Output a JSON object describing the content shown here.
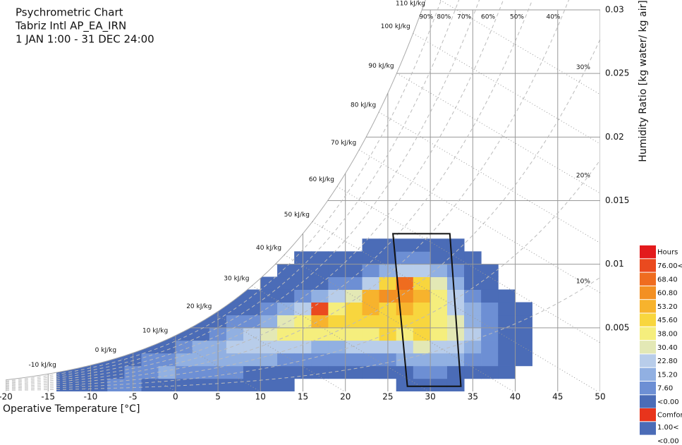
{
  "chart_data": {
    "type": "heatmap",
    "title": "Psychrometric Chart",
    "subtitle": [
      "Tabriz Intl AP_EA_IRN",
      "1 JAN 1:00 - 31 DEC 24:00"
    ],
    "x_label": "Operative Temperature [°C]",
    "y_label": "Humidity Ratio [kg water/ kg air]",
    "xlim": [
      -20,
      50
    ],
    "xticks": [
      -20,
      -15,
      -10,
      -5,
      0,
      5,
      10,
      15,
      20,
      25,
      30,
      35,
      40,
      45,
      50
    ],
    "ylim": [
      0,
      0.03
    ],
    "yticks": [
      0.005,
      0.01,
      0.015,
      0.02,
      0.025,
      0.03
    ],
    "grid": true,
    "relative_humidity_lines": [
      {
        "value": 90,
        "label": "90%"
      },
      {
        "value": 80,
        "label": "80%"
      },
      {
        "value": 70,
        "label": "70%"
      },
      {
        "value": 60,
        "label": "60%"
      },
      {
        "value": 50,
        "label": "50%"
      },
      {
        "value": 40,
        "label": "40%"
      },
      {
        "value": 30,
        "label": "30%"
      },
      {
        "value": 20,
        "label": "20%"
      },
      {
        "value": 10,
        "label": "10%"
      }
    ],
    "enthalpy_lines": [
      {
        "value": -10,
        "label": "-10 kJ/kg"
      },
      {
        "value": 0,
        "label": "0 kJ/kg"
      },
      {
        "value": 10,
        "label": "10 kJ/kg"
      },
      {
        "value": 20,
        "label": "20 kJ/kg"
      },
      {
        "value": 30,
        "label": "30 kJ/kg"
      },
      {
        "value": 40,
        "label": "40 kJ/kg"
      },
      {
        "value": 50,
        "label": "50 kJ/kg"
      },
      {
        "value": 60,
        "label": "60 kJ/kg"
      },
      {
        "value": 70,
        "label": "70 kJ/kg"
      },
      {
        "value": 80,
        "label": "80 kJ/kg"
      },
      {
        "value": 90,
        "label": "90 kJ/kg"
      },
      {
        "value": 100,
        "label": "100 kJ/kg"
      },
      {
        "value": 110,
        "label": "110 kJ/kg"
      }
    ],
    "temperature_bins": [
      -14,
      -12,
      -10,
      -8,
      -6,
      -4,
      -2,
      0,
      2,
      4,
      6,
      8,
      10,
      12,
      14,
      16,
      18,
      20,
      22,
      24,
      26,
      28,
      30,
      32,
      34,
      36,
      38,
      40,
      42
    ],
    "humidity_bins": [
      0,
      0.001,
      0.002,
      0.003,
      0.004,
      0.005,
      0.006,
      0.007,
      0.008,
      0.009,
      0.01,
      0.011,
      0.012
    ],
    "hours": [
      [
        3,
        1,
        null,
        null,
        null,
        null,
        null,
        null,
        null,
        null,
        null,
        null
      ],
      [
        5,
        2,
        null,
        null,
        null,
        null,
        null,
        null,
        null,
        null,
        null,
        null
      ],
      [
        6,
        4,
        1,
        null,
        null,
        null,
        null,
        null,
        null,
        null,
        null,
        null
      ],
      [
        8,
        6,
        2,
        null,
        null,
        null,
        null,
        null,
        null,
        null,
        null,
        null
      ],
      [
        8,
        10,
        4,
        1,
        null,
        null,
        null,
        null,
        null,
        null,
        null,
        null
      ],
      [
        6,
        14,
        8,
        2,
        null,
        null,
        null,
        null,
        null,
        null,
        null,
        null
      ],
      [
        4,
        16,
        14,
        5,
        1,
        null,
        null,
        null,
        null,
        null,
        null,
        null
      ],
      [
        3,
        15,
        20,
        10,
        3,
        1,
        null,
        null,
        null,
        null,
        null,
        null
      ],
      [
        2,
        12,
        22,
        16,
        6,
        2,
        null,
        null,
        null,
        null,
        null,
        null
      ],
      [
        2,
        10,
        22,
        22,
        12,
        4,
        1,
        null,
        null,
        null,
        null,
        null
      ],
      [
        2,
        8,
        20,
        28,
        20,
        8,
        2,
        1,
        null,
        null,
        null,
        null
      ],
      [
        2,
        6,
        18,
        30,
        30,
        14,
        5,
        1,
        null,
        null,
        null,
        null
      ],
      [
        1,
        6,
        16,
        30,
        36,
        22,
        10,
        3,
        1,
        null,
        null,
        null
      ],
      [
        1,
        5,
        14,
        26,
        38,
        34,
        16,
        6,
        2,
        1,
        null,
        null
      ],
      [
        null,
        4,
        12,
        24,
        40,
        44,
        26,
        12,
        4,
        2,
        1,
        null
      ],
      [
        null,
        3,
        10,
        22,
        38,
        54,
        80,
        18,
        6,
        3,
        1,
        null
      ],
      [
        null,
        3,
        10,
        22,
        40,
        46,
        44,
        24,
        8,
        3,
        1,
        null
      ],
      [
        null,
        3,
        10,
        24,
        42,
        48,
        46,
        34,
        12,
        4,
        2,
        null
      ],
      [
        null,
        4,
        12,
        26,
        44,
        50,
        56,
        60,
        30,
        10,
        4,
        2
      ],
      [
        null,
        4,
        14,
        28,
        46,
        52,
        50,
        66,
        48,
        18,
        6,
        2
      ],
      [
        2,
        6,
        16,
        30,
        44,
        50,
        54,
        62,
        70,
        30,
        10,
        3
      ],
      [
        3,
        8,
        18,
        32,
        46,
        50,
        52,
        58,
        50,
        28,
        10,
        3
      ],
      [
        3,
        8,
        18,
        30,
        42,
        44,
        42,
        40,
        32,
        18,
        6,
        2
      ],
      [
        2,
        6,
        16,
        26,
        34,
        34,
        30,
        26,
        16,
        8,
        3,
        1
      ],
      [
        null,
        4,
        12,
        20,
        24,
        22,
        18,
        12,
        6,
        3,
        1,
        null
      ],
      [
        null,
        2,
        8,
        12,
        14,
        12,
        8,
        5,
        2,
        1,
        null,
        null
      ],
      [
        null,
        1,
        4,
        6,
        6,
        4,
        2,
        1,
        null,
        null,
        null,
        null
      ],
      [
        null,
        null,
        2,
        3,
        3,
        2,
        1,
        null,
        null,
        null,
        null,
        null
      ]
    ],
    "hours_legend": {
      "title": "Hours",
      "colors": [
        "#e31a1c",
        "#ea4a1f",
        "#ef6c1f",
        "#f39022",
        "#f7b32d",
        "#f8d63e",
        "#f5ee7d",
        "#e3e8b5",
        "#b8cdea",
        "#91b0e2",
        "#6d8fd4",
        "#4b6cb7"
      ],
      "levels": [
        {
          "value": 76,
          "label": "76.00<"
        },
        {
          "value": 68.4,
          "label": "68.40"
        },
        {
          "value": 60.8,
          "label": "60.80"
        },
        {
          "value": 53.2,
          "label": "53.20"
        },
        {
          "value": 45.6,
          "label": "45.60"
        },
        {
          "value": 38,
          "label": "38.00"
        },
        {
          "value": 30.4,
          "label": "30.40"
        },
        {
          "value": 22.8,
          "label": "22.80"
        },
        {
          "value": 15.2,
          "label": "15.20"
        },
        {
          "value": 7.6,
          "label": "7.60"
        },
        {
          "value": 0,
          "label": "<0.00"
        }
      ]
    },
    "comfort_legend": {
      "title": "Comfort",
      "colors": [
        "#e8341c",
        "#4b6cb7"
      ],
      "levels": [
        {
          "value": 1,
          "label": "1.00<"
        },
        {
          "value": 0,
          "label": "<0.00"
        }
      ]
    },
    "comfort_polygon": {
      "x": [
        25.6,
        32.3,
        33.6,
        27.3
      ],
      "y": [
        0.0124,
        0.0124,
        0.0004,
        0.0004
      ]
    }
  }
}
